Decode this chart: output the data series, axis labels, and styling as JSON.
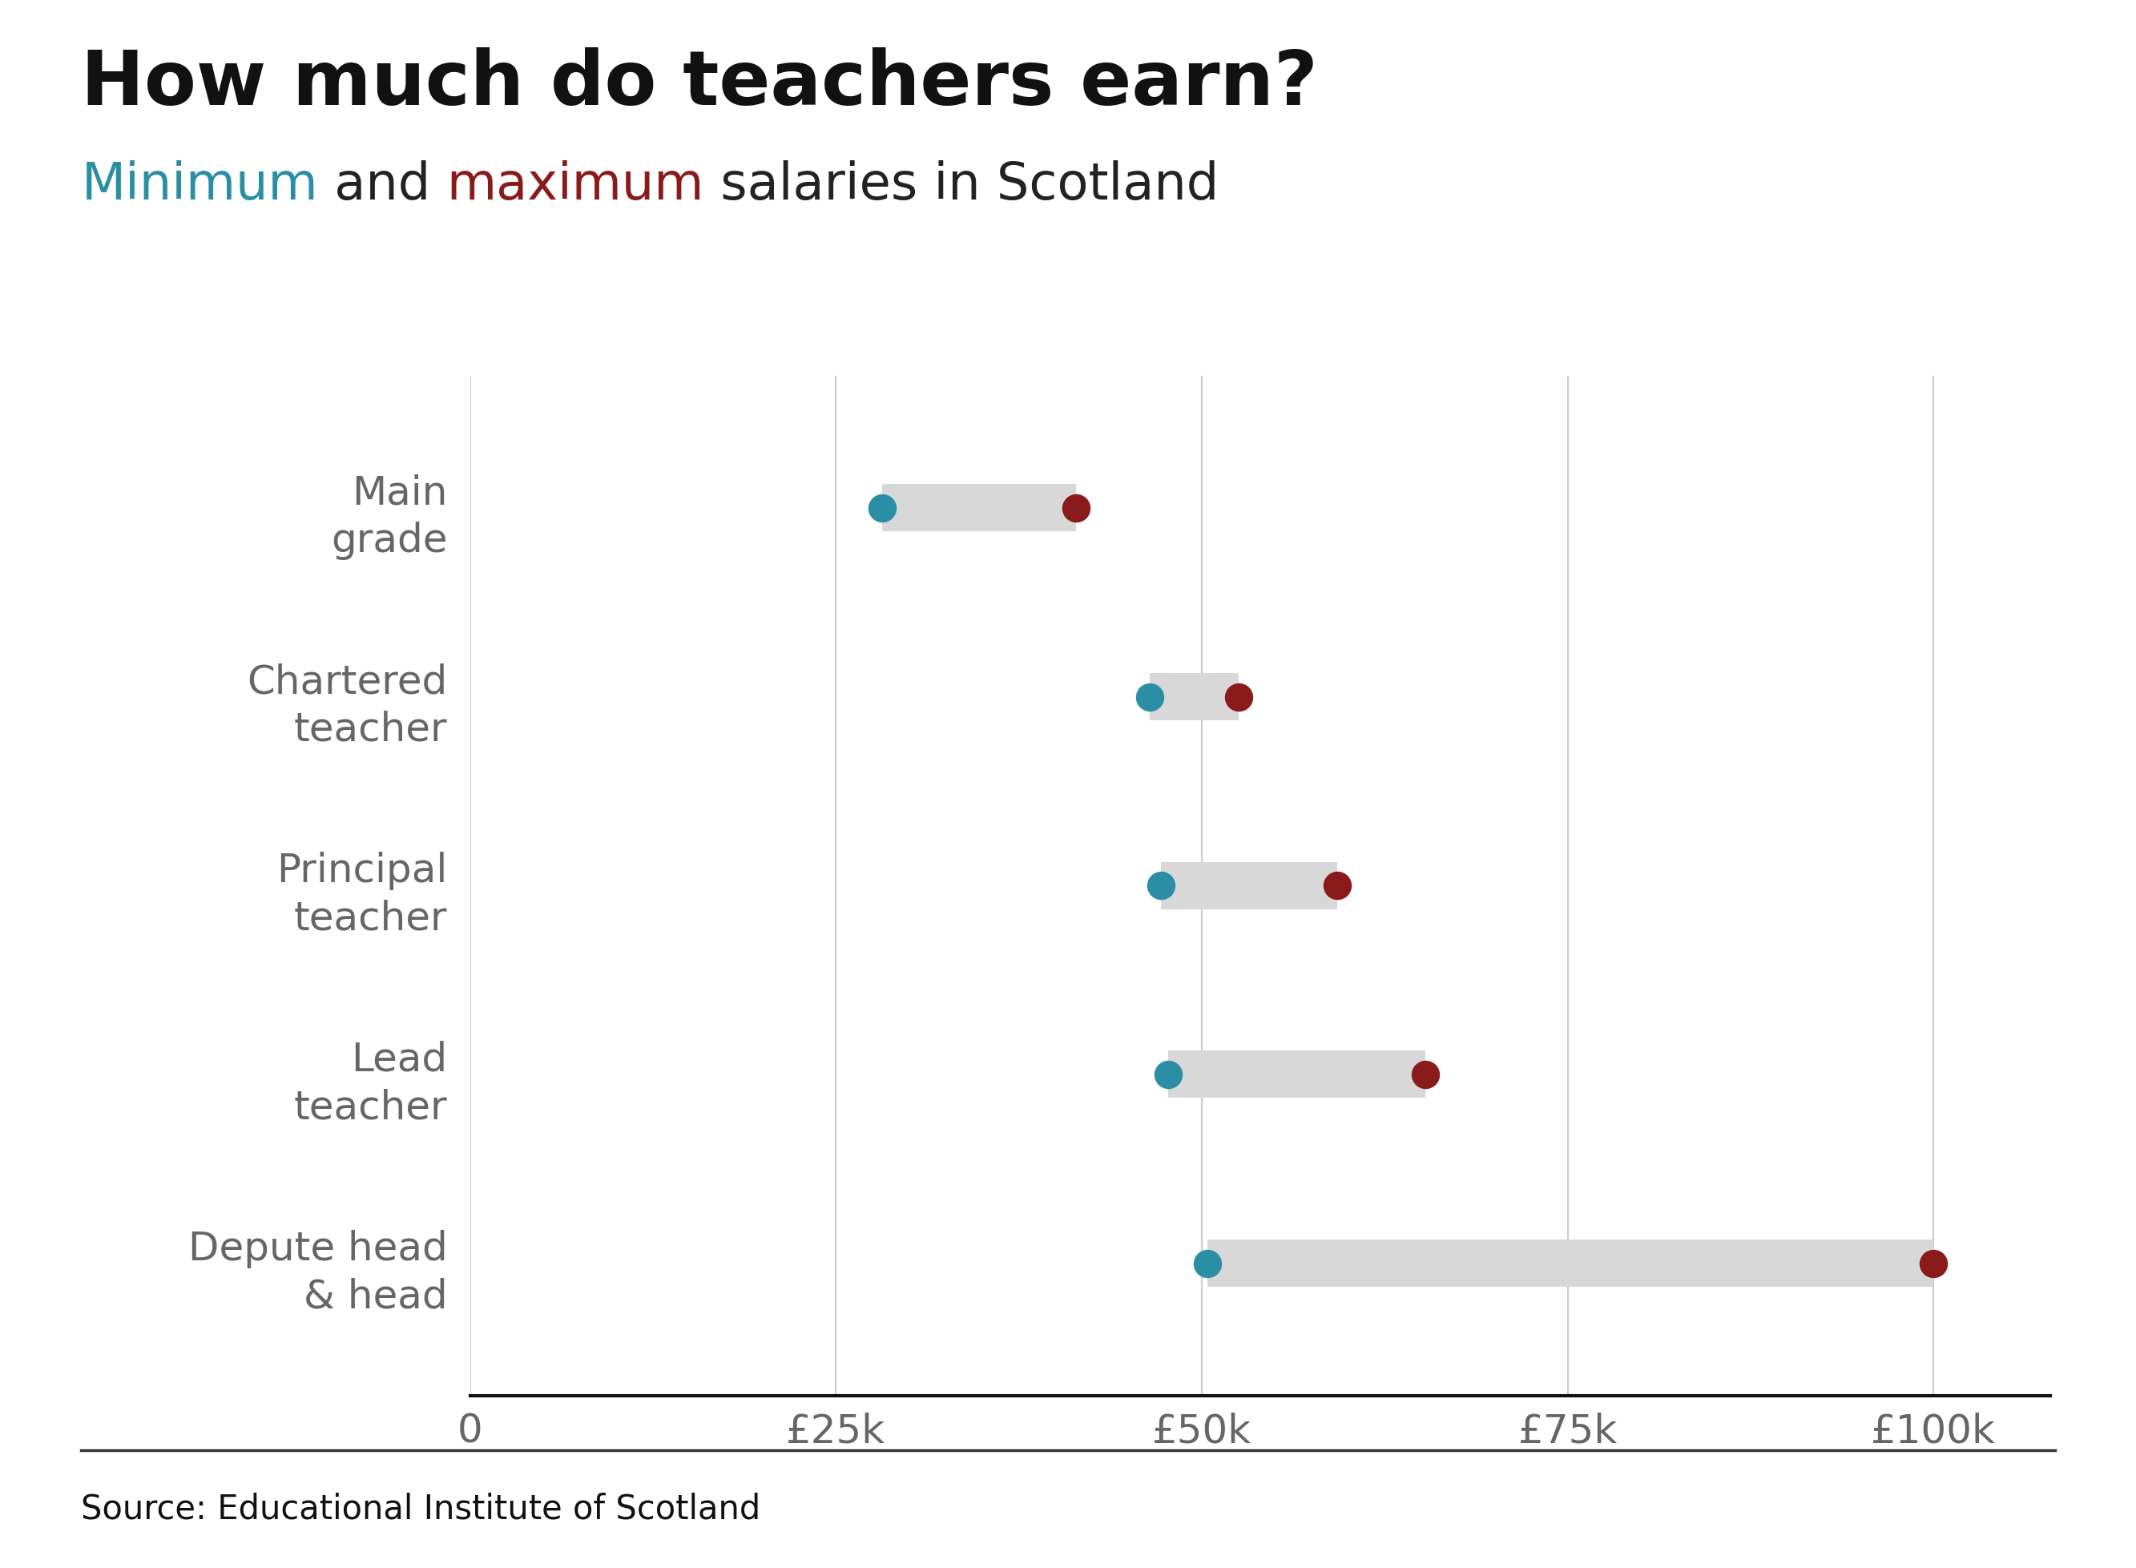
{
  "title": "How much do teachers earn?",
  "subtitle_parts": [
    {
      "text": "Minimum",
      "color": "#2a8fa5",
      "bold": false
    },
    {
      "text": " and ",
      "color": "#222222",
      "bold": false
    },
    {
      "text": "maximum",
      "color": "#8b1a1a",
      "bold": false
    },
    {
      "text": " salaries in Scotland",
      "color": "#222222",
      "bold": false
    }
  ],
  "categories": [
    "Main\ngrade",
    "Chartered\nteacher",
    "Principal\nteacher",
    "Lead\nteacher",
    "Depute head\n& head"
  ],
  "min_values": [
    28180,
    46435,
    47196,
    47704,
    50416
  ],
  "max_values": [
    41412,
    52518,
    59283,
    65259,
    100000
  ],
  "min_color": "#2a8fa5",
  "max_color": "#8b1a1a",
  "bar_color": "#d8d8d8",
  "xlim": [
    0,
    108000
  ],
  "xticks": [
    0,
    25000,
    50000,
    75000,
    100000
  ],
  "xticklabels": [
    "0",
    "£25k",
    "£50k",
    "£75k",
    "£100k"
  ],
  "source": "Source: Educational Institute of Scotland",
  "background_color": "#ffffff",
  "title_fontsize": 68,
  "subtitle_fontsize": 46,
  "tick_fontsize": 36,
  "category_fontsize": 36,
  "source_fontsize": 30,
  "dot_size": 650,
  "bar_thickness": 0.25,
  "grid_color": "#cccccc",
  "grid_linewidth": 1.5
}
